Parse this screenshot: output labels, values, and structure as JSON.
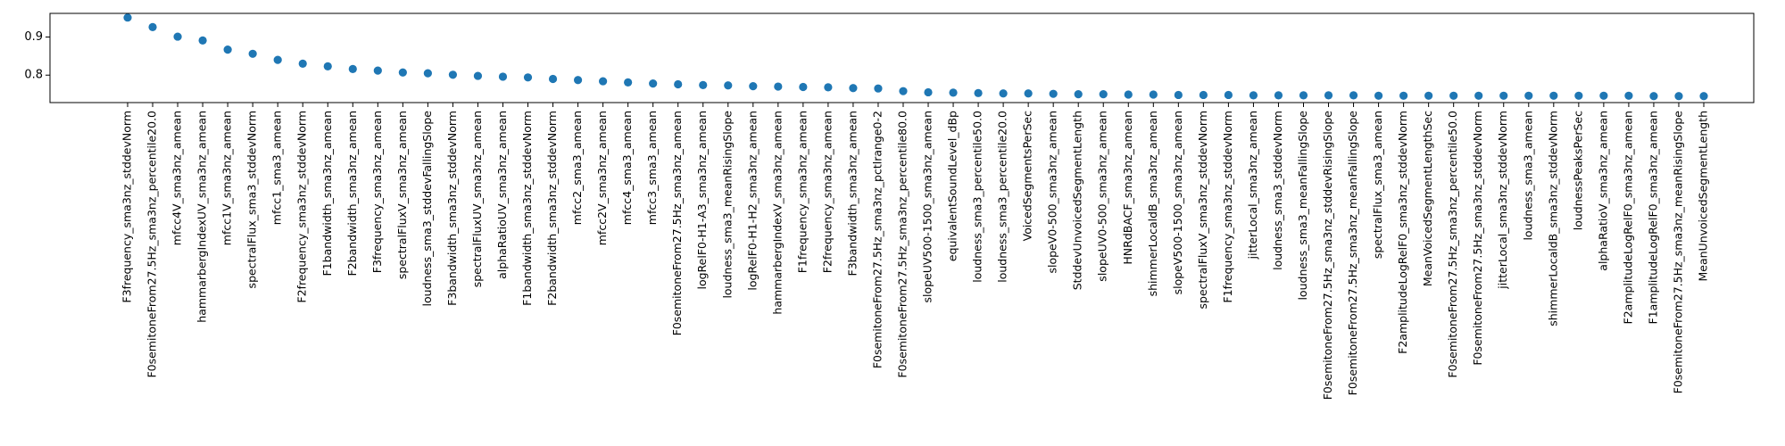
{
  "chart_data": {
    "type": "scatter",
    "title": "",
    "xlabel": "",
    "ylabel": "",
    "ylim": [
      0.728,
      0.962
    ],
    "yticks": [
      0.8,
      0.9
    ],
    "ytick_labels": [
      "0.8",
      "0.9"
    ],
    "grid": false,
    "marker_color": "#1f77b4",
    "categories": [
      "F3frequency_sma3nz_stddevNorm",
      "F0semitoneFrom27.5Hz_sma3nz_percentile20.0",
      "mfcc4V_sma3nz_amean",
      "hammarbergIndexUV_sma3nz_amean",
      "mfcc1V_sma3nz_amean",
      "spectralFlux_sma3_stddevNorm",
      "mfcc1_sma3_amean",
      "F2frequency_sma3nz_stddevNorm",
      "F1bandwidth_sma3nz_amean",
      "F2bandwidth_sma3nz_amean",
      "F3frequency_sma3nz_amean",
      "spectralFluxV_sma3nz_amean",
      "loudness_sma3_stddevFallingSlope",
      "F3bandwidth_sma3nz_stddevNorm",
      "spectralFluxUV_sma3nz_amean",
      "alphaRatioUV_sma3nz_amean",
      "F1bandwidth_sma3nz_stddevNorm",
      "F2bandwidth_sma3nz_stddevNorm",
      "mfcc2_sma3_amean",
      "mfcc2V_sma3nz_amean",
      "mfcc4_sma3_amean",
      "mfcc3_sma3_amean",
      "F0semitoneFrom27.5Hz_sma3nz_amean",
      "logRelF0-H1-A3_sma3nz_amean",
      "loudness_sma3_meanRisingSlope",
      "logRelF0-H1-H2_sma3nz_amean",
      "hammarbergIndexV_sma3nz_amean",
      "F1frequency_sma3nz_amean",
      "F2frequency_sma3nz_amean",
      "F3bandwidth_sma3nz_amean",
      "F0semitoneFrom27.5Hz_sma3nz_pctlrange0-2",
      "F0semitoneFrom27.5Hz_sma3nz_percentile80.0",
      "slopeUV500-1500_sma3nz_amean",
      "equivalentSoundLevel_dBp",
      "loudness_sma3_percentile50.0",
      "loudness_sma3_percentile20.0",
      "VoicedSegmentsPerSec",
      "slopeV0-500_sma3nz_amean",
      "StddevUnvoicedSegmentLength",
      "slopeUV0-500_sma3nz_amean",
      "HNRdBACF_sma3nz_amean",
      "shimmerLocaldB_sma3nz_amean",
      "slopeV500-1500_sma3nz_amean",
      "spectralFluxV_sma3nz_stddevNorm",
      "F1frequency_sma3nz_stddevNorm",
      "jitterLocal_sma3nz_amean",
      "loudness_sma3_stddevNorm",
      "loudness_sma3_meanFallingSlope",
      "F0semitoneFrom27.5Hz_sma3nz_stddevRisingSlope",
      "F0semitoneFrom27.5Hz_sma3nz_meanFallingSlope",
      "spectralFlux_sma3_amean",
      "F2amplitudeLogRelF0_sma3nz_stddevNorm",
      "MeanVoicedSegmentLengthSec",
      "F0semitoneFrom27.5Hz_sma3nz_percentile50.0",
      "F0semitoneFrom27.5Hz_sma3nz_stddevNorm",
      "jitterLocal_sma3nz_stddevNorm",
      "loudness_sma3_amean",
      "shimmerLocaldB_sma3nz_stddevNorm",
      "loudnessPeaksPerSec",
      "alphaRatioV_sma3nz_amean",
      "F2amplitudeLogRelF0_sma3nz_amean",
      "F1amplitudeLogRelF0_sma3nz_amean",
      "F0semitoneFrom27.5Hz_sma3nz_meanRisingSlope",
      "MeanUnvoicedSegmentLength"
    ],
    "values": [
      0.951,
      0.926,
      0.901,
      0.891,
      0.867,
      0.856,
      0.84,
      0.83,
      0.823,
      0.816,
      0.812,
      0.807,
      0.805,
      0.801,
      0.798,
      0.796,
      0.794,
      0.79,
      0.787,
      0.784,
      0.781,
      0.778,
      0.776,
      0.774,
      0.773,
      0.771,
      0.77,
      0.769,
      0.768,
      0.766,
      0.765,
      0.758,
      0.755,
      0.754,
      0.753,
      0.752,
      0.752,
      0.751,
      0.75,
      0.75,
      0.749,
      0.749,
      0.748,
      0.748,
      0.748,
      0.747,
      0.747,
      0.747,
      0.747,
      0.747,
      0.746,
      0.746,
      0.746,
      0.746,
      0.746,
      0.746,
      0.746,
      0.746,
      0.746,
      0.746,
      0.746,
      0.745,
      0.745,
      0.745
    ]
  }
}
